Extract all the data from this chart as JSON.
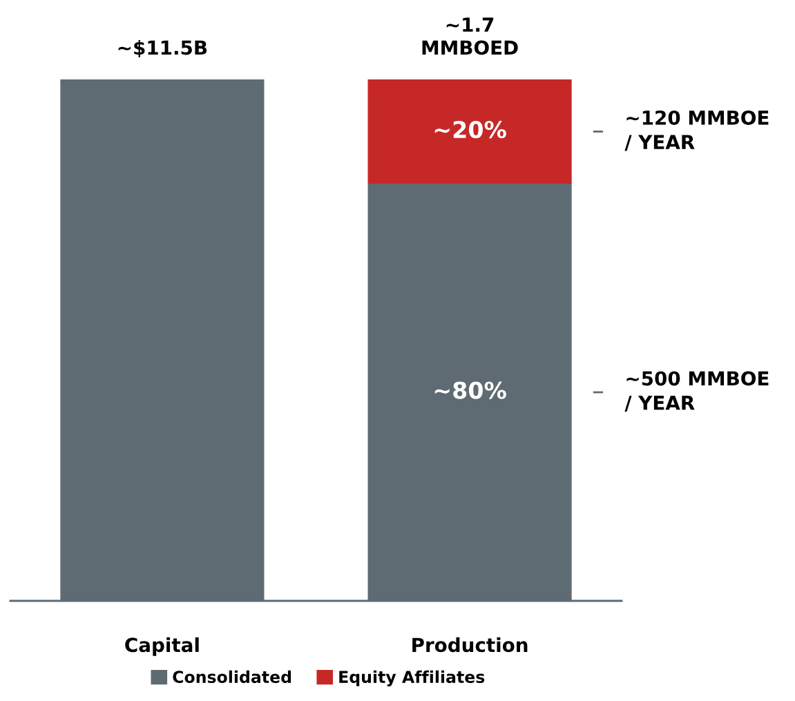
{
  "chart_data": {
    "type": "bar",
    "stacked": true,
    "categories": [
      "Capital",
      "Production"
    ],
    "series": [
      {
        "name": "Consolidated",
        "color": "#5f6b73",
        "values": [
          100,
          80
        ],
        "value_labels": [
          null,
          "~80%"
        ]
      },
      {
        "name": "Equity Affiliates",
        "color": "#c62828",
        "values": [
          null,
          20
        ],
        "value_labels": [
          null,
          "~20%"
        ]
      }
    ],
    "ylim": [
      0,
      100
    ],
    "annotations": [
      {
        "text": "~$11.5B",
        "x": "Capital",
        "y": 100
      },
      {
        "text": "~1.7\nMMBOED",
        "x": "Production",
        "y": 100
      },
      "~500 MMBOE\n/ YEAR",
      "~120 MMBOE\n/ YEAR"
    ],
    "legend": "bottom"
  }
}
